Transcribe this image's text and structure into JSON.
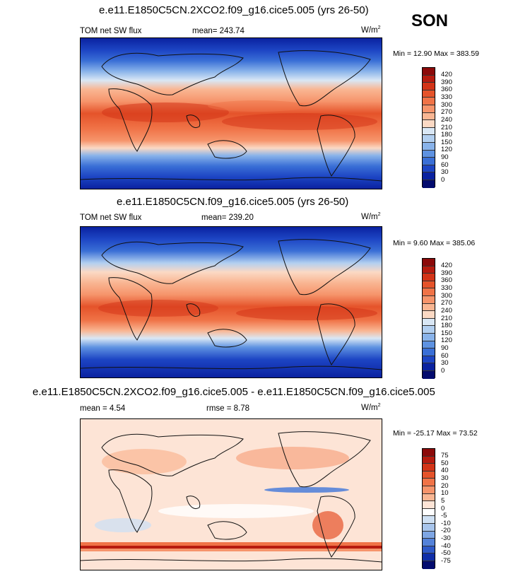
{
  "season": "SON",
  "panels": [
    {
      "title": "e.e11.E1850C5CN.2XCO2.f09_g16.cice5.005 (yrs 26-50)",
      "left_label": "TOM net SW flux",
      "center_label": "mean= 243.74",
      "units": "W/m",
      "units_sup": "2",
      "minmax": "Min =  12.90 Max = 383.59",
      "colorbar_labels": [
        "420",
        "390",
        "360",
        "330",
        "300",
        "270",
        "240",
        "210",
        "180",
        "150",
        "120",
        "90",
        "60",
        "30",
        "0"
      ],
      "colorbar_colors": [
        "#8b0a0a",
        "#b61b0f",
        "#d33417",
        "#e5532a",
        "#f07347",
        "#f6946b",
        "#f9b693",
        "#fbd9c4",
        "#d9e7f5",
        "#b2cff0",
        "#89b3ea",
        "#5e92e1",
        "#3a6fd6",
        "#1d45c4",
        "#0a22a0",
        "#030b6e"
      ]
    },
    {
      "title": "e.e11.E1850C5CN.f09_g16.cice5.005 (yrs 26-50)",
      "left_label": "TOM net SW flux",
      "center_label": "mean= 239.20",
      "units": "W/m",
      "units_sup": "2",
      "minmax": "Min =   9.60 Max = 385.06",
      "colorbar_labels": [
        "420",
        "390",
        "360",
        "330",
        "300",
        "270",
        "240",
        "210",
        "180",
        "150",
        "120",
        "90",
        "60",
        "30",
        "0"
      ],
      "colorbar_colors": [
        "#8b0a0a",
        "#b61b0f",
        "#d33417",
        "#e5532a",
        "#f07347",
        "#f6946b",
        "#f9b693",
        "#fbd9c4",
        "#d9e7f5",
        "#b2cff0",
        "#89b3ea",
        "#5e92e1",
        "#3a6fd6",
        "#1d45c4",
        "#0a22a0",
        "#030b6e"
      ]
    },
    {
      "title": "e.e11.E1850C5CN.2XCO2.f09_g16.cice5.005 - e.e11.E1850C5CN.f09_g16.cice5.005",
      "left_label": "mean =   4.54",
      "center_label": "rmse =   8.78",
      "units": "W/m",
      "units_sup": "2",
      "minmax": "Min = -25.17 Max =  73.52",
      "colorbar_labels": [
        "75",
        "50",
        "40",
        "30",
        "20",
        "10",
        "5",
        "0",
        "-5",
        "-10",
        "-20",
        "-30",
        "-40",
        "-50",
        "-75"
      ],
      "colorbar_colors": [
        "#8b0a0a",
        "#b61b0f",
        "#d33417",
        "#e5532a",
        "#f07347",
        "#f6946b",
        "#f9b693",
        "#fde4d6",
        "#ffffff",
        "#cfe0f3",
        "#a8c5ec",
        "#7ea6e4",
        "#5482d9",
        "#2e59c8",
        "#0f2ea8",
        "#030b6e"
      ]
    }
  ]
}
